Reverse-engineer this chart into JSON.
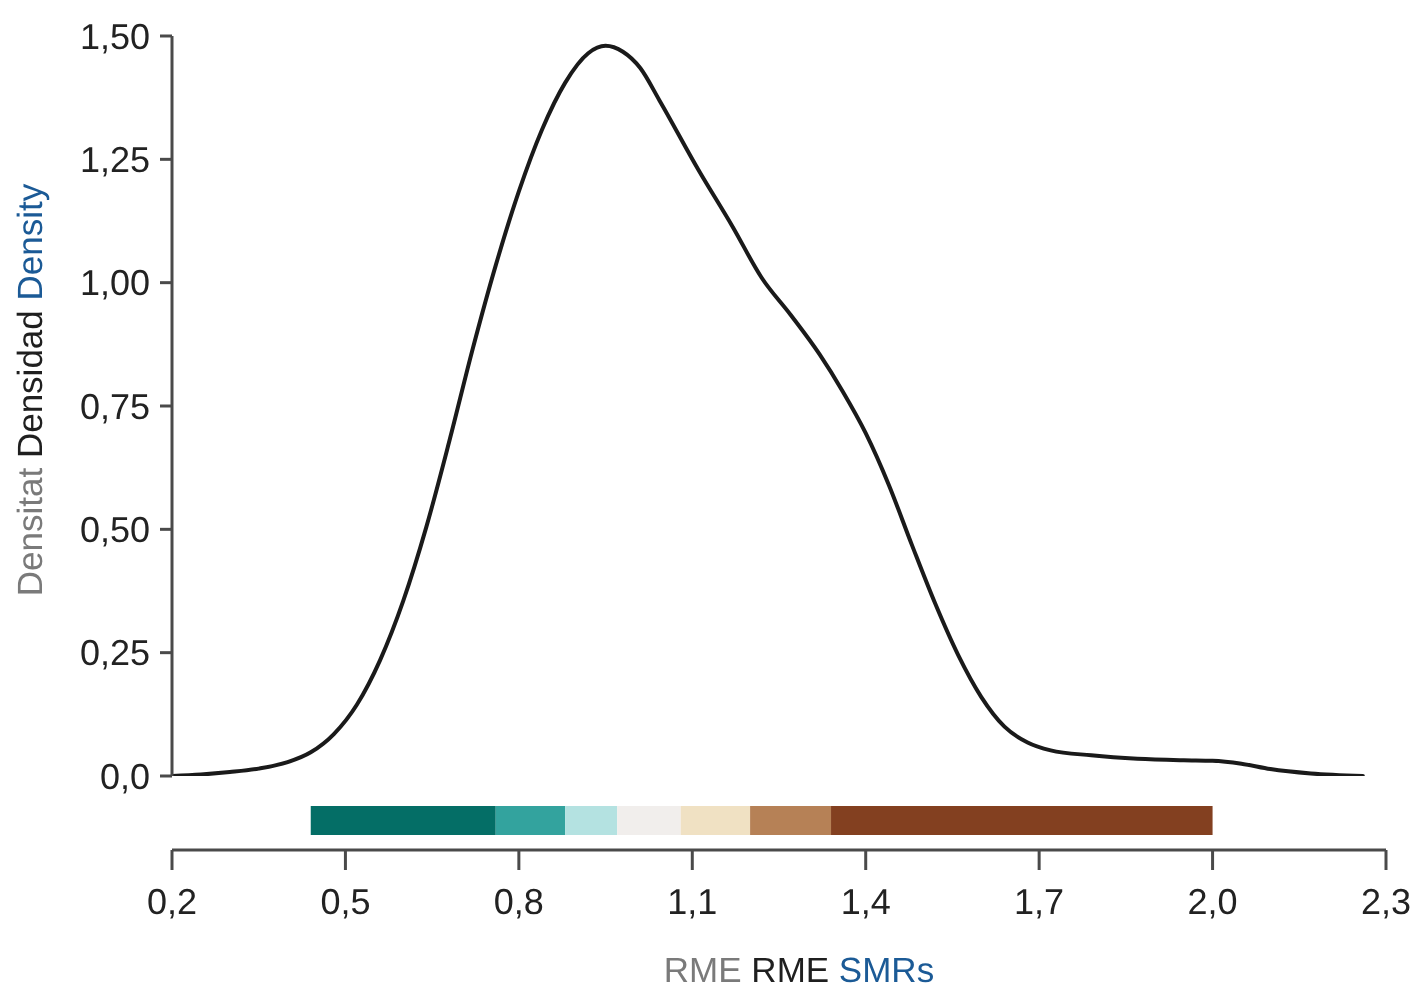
{
  "chart_data": [
    {
      "type": "line",
      "ylabel": "Densitat Densidad Density",
      "x": [
        0.2,
        0.25,
        0.3,
        0.35,
        0.4,
        0.44,
        0.48,
        0.52,
        0.56,
        0.6,
        0.64,
        0.68,
        0.72,
        0.76,
        0.8,
        0.84,
        0.88,
        0.92,
        0.95,
        0.98,
        1.01,
        1.043,
        1.11,
        1.17,
        1.22,
        1.27,
        1.32,
        1.36,
        1.4,
        1.44,
        1.48,
        1.52,
        1.56,
        1.6,
        1.64,
        1.68,
        1.72,
        1.79,
        1.87,
        1.95,
        2.0,
        2.05,
        2.1,
        2.17,
        2.26
      ],
      "values": [
        0,
        0.003,
        0.008,
        0.015,
        0.028,
        0.048,
        0.085,
        0.145,
        0.235,
        0.355,
        0.505,
        0.68,
        0.865,
        1.035,
        1.185,
        1.31,
        1.405,
        1.465,
        1.48,
        1.468,
        1.435,
        1.37,
        1.23,
        1.113,
        1.01,
        0.935,
        0.855,
        0.78,
        0.695,
        0.59,
        0.468,
        0.35,
        0.245,
        0.16,
        0.1,
        0.068,
        0.052,
        0.042,
        0.035,
        0.032,
        0.031,
        0.025,
        0.014,
        0.005,
        0
      ],
      "color": "#1a1a1a",
      "xlim": [
        0.2,
        2.3
      ],
      "ylim": [
        0,
        1.5
      ],
      "yticks": [
        {
          "value": 0,
          "label": "0,0"
        },
        {
          "value": 0.25,
          "label": "0,25"
        },
        {
          "value": 0.5,
          "label": "0,50"
        },
        {
          "value": 0.75,
          "label": "0,75"
        },
        {
          "value": 1.0,
          "label": "1,00"
        },
        {
          "value": 1.25,
          "label": "1,25"
        },
        {
          "value": 1.5,
          "label": "1,50"
        }
      ],
      "tick_labels": "y"
    },
    {
      "type": "bar",
      "orientation": "horizontal",
      "xlabel": "RME RME SMRs",
      "categories": [
        null
      ],
      "series": [
        {
          "color": "#046e66",
          "base": [
            0.44
          ],
          "values": [
            0.32
          ]
        },
        {
          "color": "#33a39e",
          "base": [
            0.76
          ],
          "values": [
            0.12
          ]
        },
        {
          "color": "#b4e2e1",
          "base": [
            0.88
          ],
          "values": [
            0.09
          ]
        },
        {
          "color": "#f1eeec",
          "base": [
            0.97
          ],
          "values": [
            0.11
          ]
        },
        {
          "color": "#f0e1c3",
          "base": [
            1.08
          ],
          "values": [
            0.12
          ]
        },
        {
          "color": "#b68156",
          "base": [
            1.2
          ],
          "values": [
            0.14
          ]
        },
        {
          "color": "#834020",
          "base": [
            1.34
          ],
          "values": [
            0.66
          ]
        }
      ],
      "xlim": [
        0.2,
        2.3
      ],
      "xticks": [
        {
          "value": 0.2,
          "label": "0,2"
        },
        {
          "value": 0.5,
          "label": "0,5"
        },
        {
          "value": 0.8,
          "label": "0,8"
        },
        {
          "value": 1.1,
          "label": "1,1"
        },
        {
          "value": 1.4,
          "label": "1,4"
        },
        {
          "value": 1.7,
          "label": "1,7"
        },
        {
          "value": 2.0,
          "label": "2,0"
        },
        {
          "value": 2.3,
          "label": "2,3"
        }
      ],
      "tick_labels": "x"
    }
  ]
}
